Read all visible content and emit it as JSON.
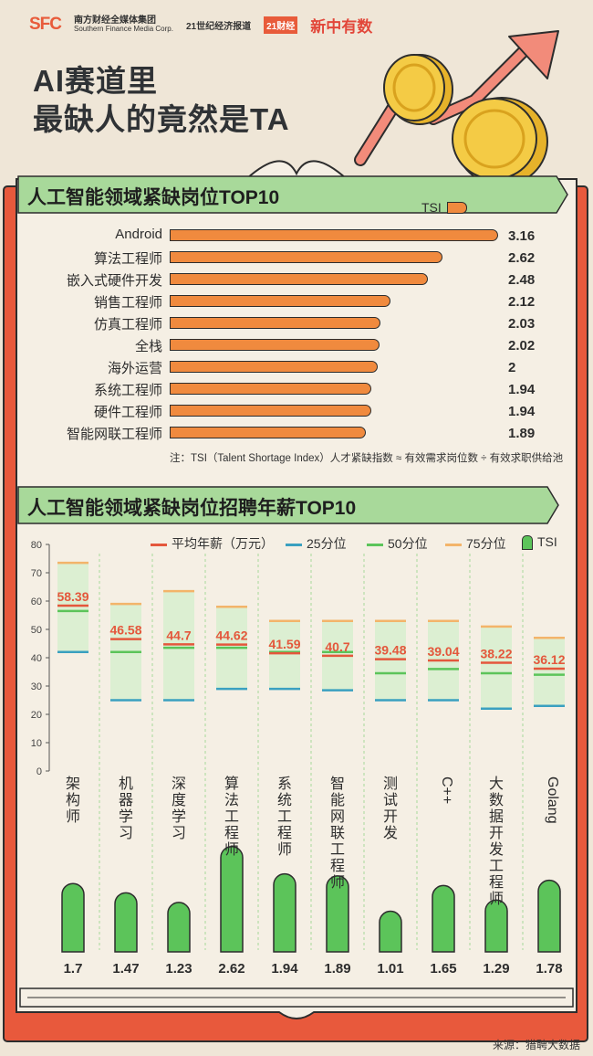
{
  "header": {
    "logo_sfc": "SFC",
    "logo_sfc_cn": "南方财经全媒体集团",
    "logo_sfc_en": "Southern Finance Media Corp.",
    "logo_21sj": "21世纪经济报道",
    "logo_21cj": "21财经",
    "logo_xin": "新中有数",
    "title_line1": "AI赛道里",
    "title_line2": "最缺人的竟然是TA"
  },
  "section1": {
    "title": "人工智能领域紧缺岗位TOP10",
    "legend_tsi": "TSI",
    "note": "注：TSI（Talent Shortage Index）人才紧缺指数 ≈ 有效需求岗位数 ÷ 有效求职供给池"
  },
  "section2": {
    "title": "人工智能领域紧缺岗位招聘年薪TOP10",
    "legend": {
      "avg": "平均年薪（万元）",
      "p25": "25分位",
      "p50": "50分位",
      "p75": "75分位",
      "tsi": "TSI"
    }
  },
  "source": "来源：猎聘大数据",
  "colors": {
    "orange": "#f08a3e",
    "red": "#e4573c",
    "blue": "#3aa0c0",
    "green": "#5cc45a",
    "yellow": "#f3b46a",
    "band": "#a8d99a",
    "paper": "#f5efe4",
    "frame": "#e8593c"
  },
  "chart_data": [
    {
      "type": "bar",
      "orientation": "horizontal",
      "title": "人工智能领域紧缺岗位TOP10",
      "categories": [
        "Android",
        "算法工程师",
        "嵌入式硬件开发",
        "销售工程师",
        "仿真工程师",
        "全栈",
        "海外运营",
        "系统工程师",
        "硬件工程师",
        "智能网联工程师"
      ],
      "series": [
        {
          "name": "TSI",
          "values": [
            3.16,
            2.62,
            2.48,
            2.12,
            2.03,
            2.02,
            2,
            1.94,
            1.94,
            1.89
          ]
        }
      ],
      "value_labels": [
        "3.16",
        "2.62",
        "2.48",
        "2.12",
        "2.03",
        "2.02",
        "2",
        "1.94",
        "1.94",
        "1.89"
      ]
    },
    {
      "type": "range",
      "title": "人工智能领域紧缺岗位招聘年薪TOP10",
      "categories": [
        "架构师",
        "机器学习",
        "深度学习",
        "算法工程师",
        "系统工程师",
        "智能网联工程师",
        "测试开发",
        "C++",
        "大数据开发工程师",
        "Golang"
      ],
      "ylim": [
        0,
        80
      ],
      "yticks": [
        "0",
        "10",
        "20",
        "30",
        "40",
        "50",
        "60",
        "70",
        "80"
      ],
      "series": [
        {
          "name": "平均年薪（万元）",
          "values": [
            58.39,
            46.58,
            44.7,
            44.62,
            41.59,
            40.7,
            39.48,
            39.04,
            38.22,
            36.12
          ]
        },
        {
          "name": "25分位",
          "values": [
            42,
            25,
            25,
            29,
            29,
            28.5,
            25,
            25,
            22,
            23
          ]
        },
        {
          "name": "50分位",
          "values": [
            56.5,
            42,
            43.5,
            43.5,
            42,
            42,
            34.5,
            36,
            34.5,
            34
          ]
        },
        {
          "name": "75分位",
          "values": [
            73.5,
            59,
            63.5,
            58,
            53,
            53,
            53,
            53,
            51,
            47
          ]
        },
        {
          "name": "TSI",
          "values": [
            1.7,
            1.47,
            1.23,
            2.62,
            1.94,
            1.89,
            1.01,
            1.65,
            1.29,
            1.78
          ]
        }
      ],
      "avg_labels": [
        "58.39",
        "46.58",
        "44.7",
        "44.62",
        "41.59",
        "40.7",
        "39.48",
        "39.04",
        "38.22",
        "36.12"
      ],
      "tsi_labels": [
        "1.7",
        "1.47",
        "1.23",
        "2.62",
        "1.94",
        "1.89",
        "1.01",
        "1.65",
        "1.29",
        "1.78"
      ]
    }
  ]
}
